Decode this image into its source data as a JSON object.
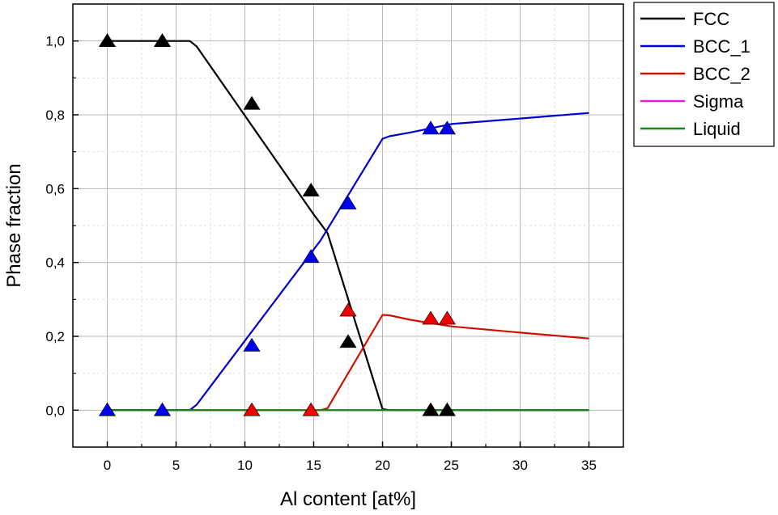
{
  "chart_data": {
    "type": "line",
    "title": "",
    "xlabel": "Al content [at%]",
    "ylabel": "Phase fraction",
    "xlim": [
      -2.5,
      37.5
    ],
    "ylim": [
      -0.1,
      1.1
    ],
    "xticks": [
      0,
      5,
      10,
      15,
      20,
      25,
      30,
      35
    ],
    "xtick_labels": [
      "0",
      "5",
      "10",
      "15",
      "20",
      "25",
      "30",
      "35"
    ],
    "yticks": [
      0.0,
      0.2,
      0.4,
      0.6,
      0.8,
      1.0
    ],
    "ytick_labels": [
      "0,0",
      "0,2",
      "0,4",
      "0,6",
      "0,8",
      "1,0"
    ],
    "grid": true,
    "legend_position": "outside-right-top",
    "series": [
      {
        "name": "FCC",
        "color": "#000000",
        "x": [
          0,
          6.0,
          6.5,
          15.0,
          16.0,
          20.0,
          20.5,
          35
        ],
        "y": [
          1.0,
          1.0,
          0.985,
          0.53,
          0.48,
          0.003,
          0.0,
          0.0
        ]
      },
      {
        "name": "BCC_1",
        "color": "#0000cc",
        "x": [
          0,
          6.0,
          6.5,
          15.5,
          20.0,
          20.5,
          22.0,
          25.0,
          30.0,
          35.0
        ],
        "y": [
          0.0,
          0.0,
          0.015,
          0.46,
          0.735,
          0.742,
          0.752,
          0.775,
          0.79,
          0.805
        ]
      },
      {
        "name": "BCC_2",
        "color": "#cc1100",
        "x": [
          0,
          15.5,
          16.0,
          20.0,
          20.5,
          22.0,
          25.0,
          30.0,
          35.0
        ],
        "y": [
          0.0,
          0.0,
          0.005,
          0.258,
          0.257,
          0.245,
          0.227,
          0.21,
          0.194
        ]
      },
      {
        "name": "Sigma",
        "color": "#e020e0",
        "x": [
          0,
          35
        ],
        "y": [
          0.0,
          0.0
        ]
      },
      {
        "name": "Liquid",
        "color": "#118811",
        "x": [
          0,
          35
        ],
        "y": [
          0.0,
          0.0
        ]
      }
    ],
    "markers": [
      {
        "phase": "FCC",
        "color": "#000000",
        "shape": "triangle",
        "x": [
          0,
          4,
          10.5,
          14.8,
          17.5,
          23.5,
          24.7
        ],
        "y": [
          1.0,
          1.0,
          0.83,
          0.595,
          0.185,
          0.0,
          0.0
        ]
      },
      {
        "phase": "BCC_1",
        "color": "#0000ee",
        "shape": "triangle",
        "x": [
          0,
          4,
          10.5,
          14.8,
          17.5,
          23.5,
          24.7
        ],
        "y": [
          0.0,
          0.0,
          0.175,
          0.415,
          0.56,
          0.763,
          0.763
        ]
      },
      {
        "phase": "BCC_2",
        "color": "#ee0000",
        "shape": "triangle",
        "x": [
          10.5,
          14.8,
          17.5,
          23.5,
          24.7
        ],
        "y": [
          0.0,
          0.0,
          0.27,
          0.248,
          0.248
        ]
      }
    ]
  }
}
